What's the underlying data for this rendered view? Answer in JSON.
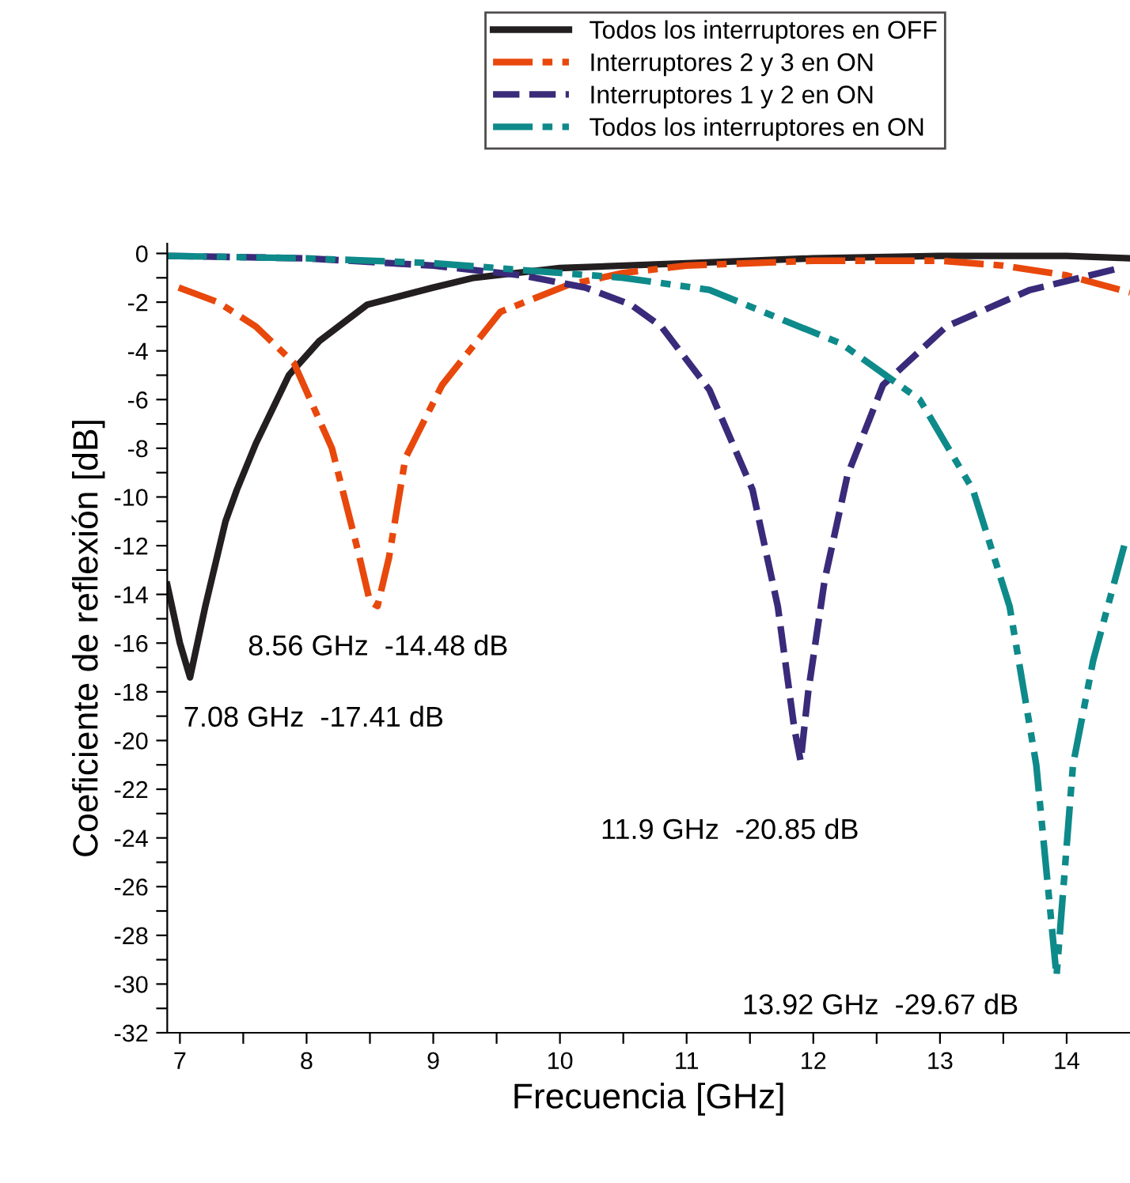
{
  "chart_data": {
    "type": "line",
    "xlabel": "Frecuencia [GHz]",
    "ylabel": "Coeficiente de reflexión [dB]",
    "xlim": [
      6.9,
      14.5
    ],
    "ylim": [
      -32,
      0.4
    ],
    "xticks": [
      7,
      {
        "value": 7.5,
        "label": null
      },
      8,
      {
        "value": 8.5,
        "label": null
      },
      9,
      {
        "value": 9.5,
        "label": null
      },
      10,
      {
        "value": 10.5,
        "label": null
      },
      11,
      {
        "value": 11.5,
        "label": null
      },
      12,
      {
        "value": 12.5,
        "label": null
      },
      13,
      {
        "value": 13.5,
        "label": null
      },
      14
    ],
    "yticks": [
      0,
      {
        "value": -1,
        "label": null
      },
      -2,
      {
        "value": -3,
        "label": null
      },
      -4,
      {
        "value": -5,
        "label": null
      },
      -6,
      {
        "value": -7,
        "label": null
      },
      -8,
      {
        "value": -9,
        "label": null
      },
      -10,
      {
        "value": -11,
        "label": null
      },
      -12,
      {
        "value": -13,
        "label": null
      },
      -14,
      {
        "value": -15,
        "label": null
      },
      -16,
      {
        "value": -17,
        "label": null
      },
      -18,
      {
        "value": -19,
        "label": null
      },
      -20,
      {
        "value": -21,
        "label": null
      },
      -22,
      {
        "value": -23,
        "label": null
      },
      -24,
      {
        "value": -25,
        "label": null
      },
      -26,
      {
        "value": -27,
        "label": null
      },
      -28,
      {
        "value": -29,
        "label": null
      },
      -30,
      {
        "value": -31,
        "label": null
      },
      -32
    ],
    "grid": false,
    "legend": "top",
    "marker": "none",
    "series": [
      {
        "name": "Todos los interruptores en OFF",
        "color": "#231f20",
        "line_style": "solid",
        "x": [
          6.9,
          7.0,
          7.08,
          7.2,
          7.36,
          7.45,
          7.6,
          7.86,
          8.1,
          8.48,
          9.0,
          9.32,
          10.0,
          11.0,
          12.0,
          13.0,
          14.0,
          14.5
        ],
        "values": [
          -13.6,
          -16,
          -17.41,
          -14.5,
          -11,
          -9.7,
          -7.8,
          -5.0,
          -3.6,
          -2.1,
          -1.4,
          -1.0,
          -0.6,
          -0.4,
          -0.2,
          -0.1,
          -0.1,
          -0.2
        ]
      },
      {
        "name": "Interruptores 2 y 3 en ON",
        "color": "#e8480c",
        "line_style": "dashdot",
        "x": [
          6.99,
          7.3,
          7.6,
          7.9,
          8.2,
          8.41,
          8.5,
          8.56,
          8.65,
          8.78,
          9.07,
          9.53,
          10.06,
          10.5,
          11.0,
          12.0,
          13.0,
          13.5,
          14.0,
          14.5
        ],
        "values": [
          -1.4,
          -2.0,
          -3.0,
          -4.5,
          -8.0,
          -12.3,
          -14.3,
          -14.48,
          -12.5,
          -8.4,
          -5.4,
          -2.4,
          -1.3,
          -0.8,
          -0.5,
          -0.3,
          -0.3,
          -0.5,
          -0.9,
          -1.6
        ]
      },
      {
        "name": "Interruptores 1 y 2 en ON",
        "color": "#3a2a7a",
        "line_style": "dashed",
        "x": [
          6.9,
          8.0,
          9.0,
          9.7,
          10.2,
          10.56,
          10.8,
          11.18,
          11.52,
          11.72,
          11.85,
          11.9,
          11.96,
          12.09,
          12.27,
          12.55,
          13.05,
          13.71,
          14.42
        ],
        "values": [
          -0.1,
          -0.2,
          -0.5,
          -0.9,
          -1.4,
          -2.1,
          -3.0,
          -5.6,
          -9.7,
          -14.5,
          -19.5,
          -20.85,
          -18,
          -13.4,
          -9.1,
          -5.4,
          -3.0,
          -1.5,
          -0.6
        ]
      },
      {
        "name": "Todos los interruptores en ON",
        "color": "#0e8a8a",
        "line_style": "dashdotdot",
        "x": [
          6.9,
          8.0,
          9.0,
          10.0,
          10.5,
          11.18,
          12.22,
          12.84,
          13.26,
          13.55,
          13.76,
          13.92,
          14.05,
          14.21,
          14.47
        ],
        "values": [
          -0.1,
          -0.2,
          -0.4,
          -0.8,
          -1.0,
          -1.5,
          -3.7,
          -6.0,
          -9.7,
          -14.5,
          -21,
          -29.67,
          -21,
          -16.7,
          -11.7
        ]
      }
    ],
    "annotations": [
      {
        "text": "7.08 GHz  -17.41 dB",
        "x": 7.08,
        "y": -17.41
      },
      {
        "text": "8.56 GHz  -14.48 dB",
        "x": 8.56,
        "y": -14.48
      },
      {
        "text": "11.9 GHz  -20.85 dB",
        "x": 11.9,
        "y": -20.85
      },
      {
        "text": "13.92 GHz  -29.67 dB",
        "x": 13.92,
        "y": -29.67
      }
    ]
  }
}
